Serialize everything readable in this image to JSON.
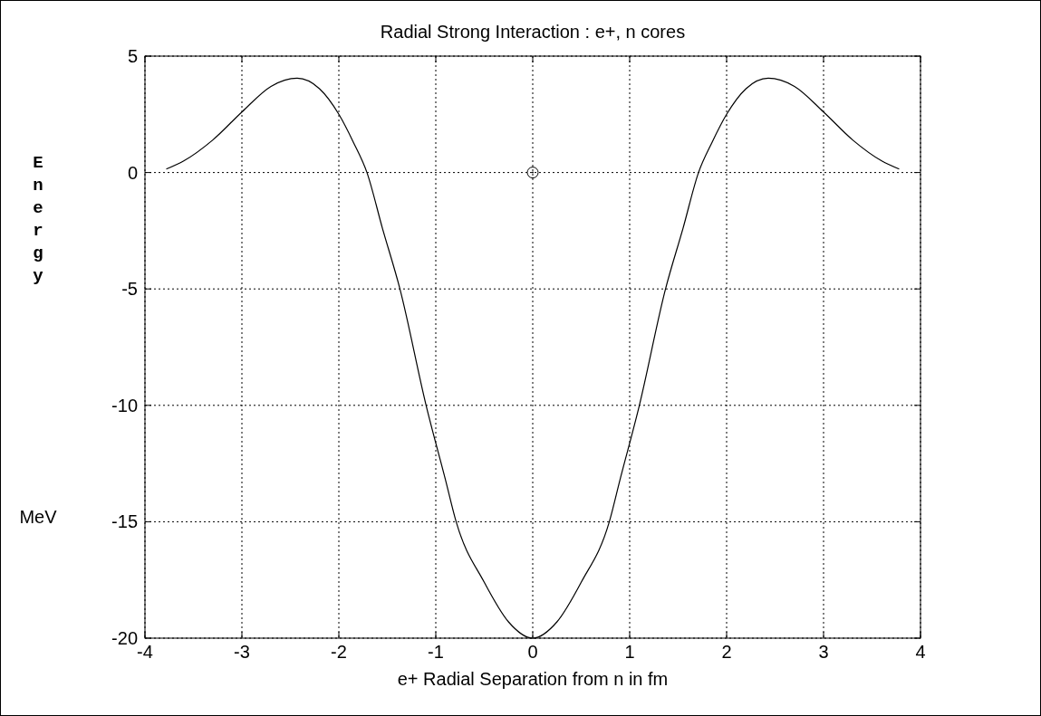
{
  "chart_data": {
    "type": "line",
    "title": "Radial Strong Interaction :  e+, n  cores",
    "xlabel": "e+  Radial Separation  from  n  in  fm",
    "ylabel": "Energy",
    "annotations": [
      "MeV"
    ],
    "xlim": [
      -4,
      4
    ],
    "ylim": [
      -20,
      5
    ],
    "xticks": [
      -4,
      -3,
      -2,
      -1,
      0,
      1,
      2,
      3,
      4
    ],
    "yticks": [
      -20,
      -15,
      -10,
      -5,
      0,
      5
    ],
    "grid": true,
    "series": [
      {
        "color": "#000000",
        "marker": "none",
        "x": [
          -3.78,
          -3.6,
          -3.3,
          -3.0,
          -2.7,
          -2.43,
          -2.2,
          -2.0,
          -1.85,
          -1.71,
          -1.55,
          -1.37,
          -1.1,
          -0.9,
          -0.79,
          -0.5,
          -0.25,
          0,
          0.25,
          0.5,
          0.79,
          0.9,
          1.1,
          1.37,
          1.55,
          1.71,
          1.85,
          2.0,
          2.2,
          2.43,
          2.7,
          3.0,
          3.3,
          3.6,
          3.78
        ],
        "values": [
          0.15,
          0.5,
          1.4,
          2.6,
          3.7,
          4.05,
          3.6,
          2.5,
          1.3,
          0,
          -2.4,
          -5,
          -10,
          -13.2,
          -15,
          -17.6,
          -19.3,
          -20,
          -19.3,
          -17.6,
          -15,
          -13.2,
          -10,
          -5,
          -2.4,
          0,
          1.3,
          2.5,
          3.6,
          4.05,
          3.7,
          2.6,
          1.4,
          0.5,
          0.15
        ]
      },
      {
        "type": "scatter",
        "color": "#000000",
        "marker": "circle",
        "x": [
          0
        ],
        "values": [
          0
        ]
      }
    ]
  }
}
